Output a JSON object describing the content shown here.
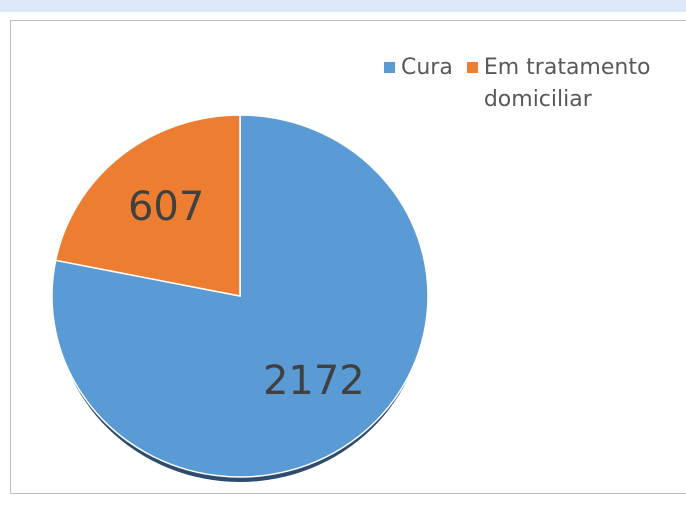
{
  "chart_data": {
    "type": "pie",
    "categories": [
      "Cura",
      "Em tratamento domiciliar"
    ],
    "values": [
      2172,
      607
    ],
    "colors": [
      "#5b9bd5",
      "#ed7d31"
    ],
    "legend": "top-right"
  }
}
